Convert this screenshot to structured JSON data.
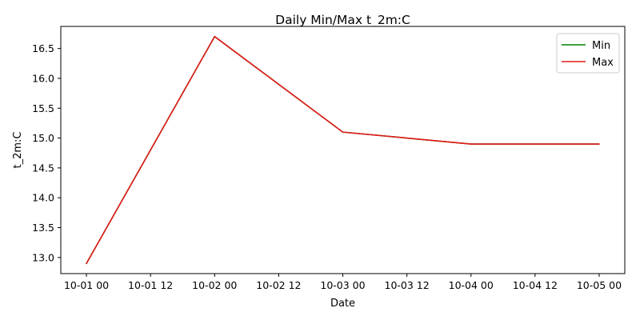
{
  "chart_data": {
    "type": "line",
    "title": "Daily Min/Max t_2m:C",
    "xlabel": "Date",
    "ylabel": "t_2m:C",
    "x": [
      "10-01 00",
      "10-02 00",
      "10-03 00",
      "10-04 00",
      "10-05 00"
    ],
    "x_ticks": [
      "10-01 00",
      "10-01 12",
      "10-02 00",
      "10-02 12",
      "10-03 00",
      "10-03 12",
      "10-04 00",
      "10-04 12",
      "10-05 00"
    ],
    "y_ticks": [
      "13.0",
      "13.5",
      "14.0",
      "14.5",
      "15.0",
      "15.5",
      "16.0",
      "16.5"
    ],
    "ylim": [
      12.73,
      16.87
    ],
    "xlim": [
      "09-30 19:12",
      "10-05 04:48"
    ],
    "grid": false,
    "legend_position": "top-right",
    "series": [
      {
        "name": "Min",
        "color": "#008000",
        "values": [
          12.9,
          16.7,
          15.1,
          14.9,
          14.9
        ]
      },
      {
        "name": "Max",
        "color": "#e41a1c",
        "values": [
          12.9,
          16.7,
          15.1,
          14.9,
          14.9
        ]
      }
    ]
  }
}
